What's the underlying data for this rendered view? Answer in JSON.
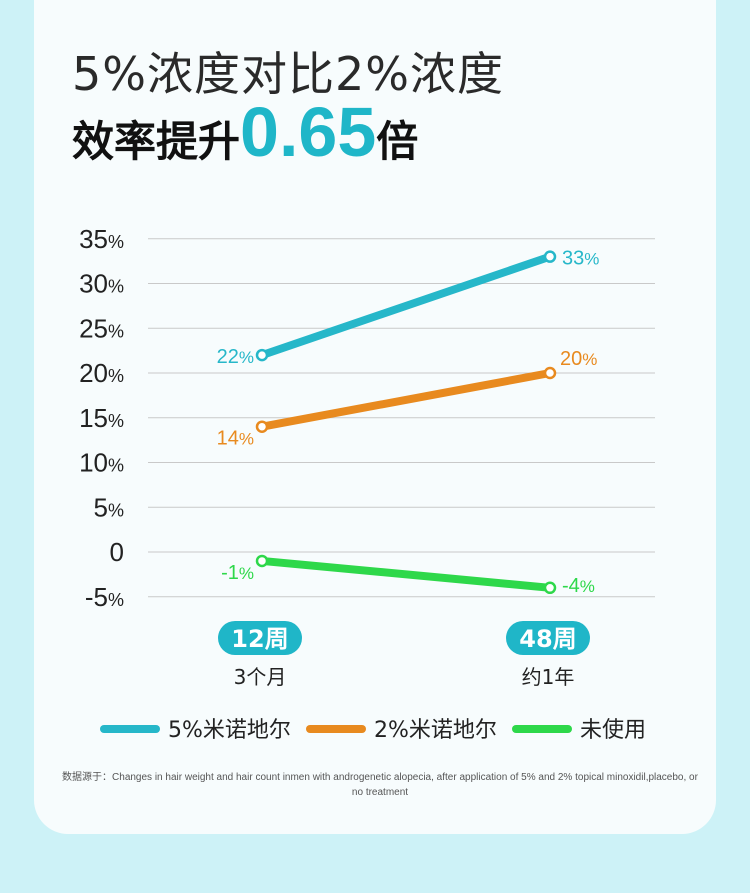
{
  "title": {
    "line1": "5%浓度对比2%浓度",
    "line2_prefix": "效率提升",
    "line2_highlight": "0.65",
    "line2_suffix": "倍"
  },
  "chart_data": {
    "type": "line",
    "yticks": [
      "35%",
      "30%",
      "25%",
      "20%",
      "15%",
      "10%",
      "5%",
      "0",
      "-5%"
    ],
    "ylim": [
      -5,
      35
    ],
    "categories": [
      {
        "badge": "12周",
        "sub": "3个月"
      },
      {
        "badge": "48周",
        "sub": "约1年"
      }
    ],
    "series": [
      {
        "name": "5%米诺地尔",
        "color": "#26b7c9",
        "values": [
          22,
          33
        ],
        "labels": [
          "22%",
          "33%"
        ]
      },
      {
        "name": "2%米诺地尔",
        "color": "#e88a1f",
        "values": [
          14,
          20
        ],
        "labels": [
          "14%",
          "20%"
        ]
      },
      {
        "name": "未使用",
        "color": "#2ed84a",
        "values": [
          -1,
          -4
        ],
        "labels": [
          "-1%",
          "-4%"
        ]
      }
    ],
    "legend_position": "bottom",
    "grid": true
  },
  "footnote": "数据源于：Changes in hair weight and hair count inmen with androgenetic alopecia, after application of 5% and 2% topical minoxidil,placebo, or no treatment"
}
